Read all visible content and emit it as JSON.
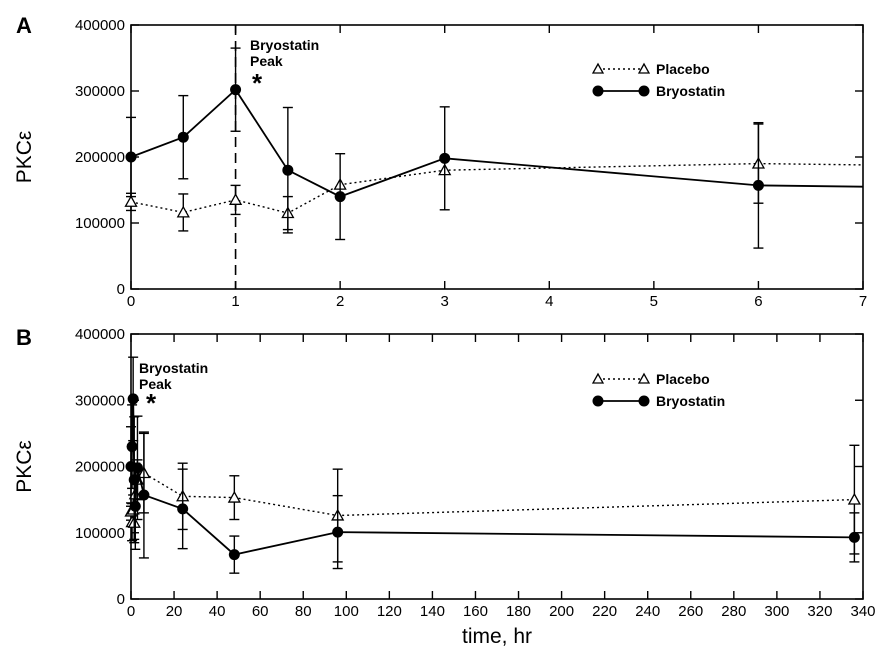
{
  "chart_data": [
    {
      "type": "line",
      "panel_label": "A",
      "title": "",
      "xlabel": "",
      "ylabel": "PKCε",
      "xlim": [
        0,
        7
      ],
      "ylim": [
        0,
        400000
      ],
      "xticks": [
        0,
        1,
        2,
        3,
        4,
        5,
        6,
        7
      ],
      "yticks": [
        0,
        100000,
        200000,
        300000,
        400000
      ],
      "grid": false,
      "legend": "top-right",
      "vline_x": 1,
      "annotation": {
        "lines": [
          "Bryostatin",
          "Peak"
        ],
        "marker": "*"
      },
      "series": [
        {
          "name": "Placebo",
          "style": "dotted",
          "marker": "open-triangle",
          "x": [
            0,
            0.5,
            1,
            1.5,
            2,
            3,
            6,
            7
          ],
          "y": [
            132000,
            116000,
            135000,
            115000,
            158000,
            180000,
            190000,
            188000
          ],
          "err": [
            13000,
            28000,
            22000,
            25000,
            0,
            0,
            60000,
            0
          ]
        },
        {
          "name": "Bryostatin",
          "style": "solid",
          "marker": "filled-circle",
          "x": [
            0,
            0.5,
            1,
            1.5,
            2,
            3,
            6,
            7
          ],
          "y": [
            200000,
            230000,
            302000,
            180000,
            140000,
            198000,
            157000,
            155000
          ],
          "err": [
            60000,
            63000,
            63000,
            95000,
            65000,
            78000,
            95000,
            0
          ]
        }
      ]
    },
    {
      "type": "line",
      "panel_label": "B",
      "title": "",
      "xlabel": "time, hr",
      "ylabel": "PKCε",
      "xlim": [
        0,
        340
      ],
      "ylim": [
        0,
        400000
      ],
      "xticks": [
        0,
        20,
        40,
        60,
        80,
        100,
        120,
        140,
        160,
        180,
        200,
        220,
        240,
        260,
        280,
        300,
        320,
        340
      ],
      "yticks": [
        0,
        100000,
        200000,
        300000,
        400000
      ],
      "grid": false,
      "legend": "top-right",
      "annotation": {
        "lines": [
          "Bryostatin",
          "Peak"
        ],
        "marker": "*"
      },
      "series": [
        {
          "name": "Placebo",
          "style": "dotted",
          "marker": "open-triangle",
          "x": [
            0,
            0.5,
            1,
            1.5,
            2,
            3,
            6,
            24,
            48,
            96,
            336
          ],
          "y": [
            132000,
            116000,
            135000,
            115000,
            158000,
            180000,
            190000,
            155000,
            153000,
            126000,
            150000
          ],
          "err": [
            13000,
            28000,
            22000,
            25000,
            20000,
            30000,
            60000,
            50000,
            33000,
            70000,
            82000
          ]
        },
        {
          "name": "Bryostatin",
          "style": "solid",
          "marker": "filled-circle",
          "x": [
            0,
            0.5,
            1,
            1.5,
            2,
            3,
            6,
            24,
            48,
            96,
            336
          ],
          "y": [
            200000,
            230000,
            302000,
            180000,
            140000,
            198000,
            157000,
            136000,
            67000,
            101000,
            93000
          ],
          "err": [
            60000,
            63000,
            63000,
            95000,
            65000,
            78000,
            95000,
            60000,
            28000,
            55000,
            37000
          ]
        }
      ]
    }
  ]
}
